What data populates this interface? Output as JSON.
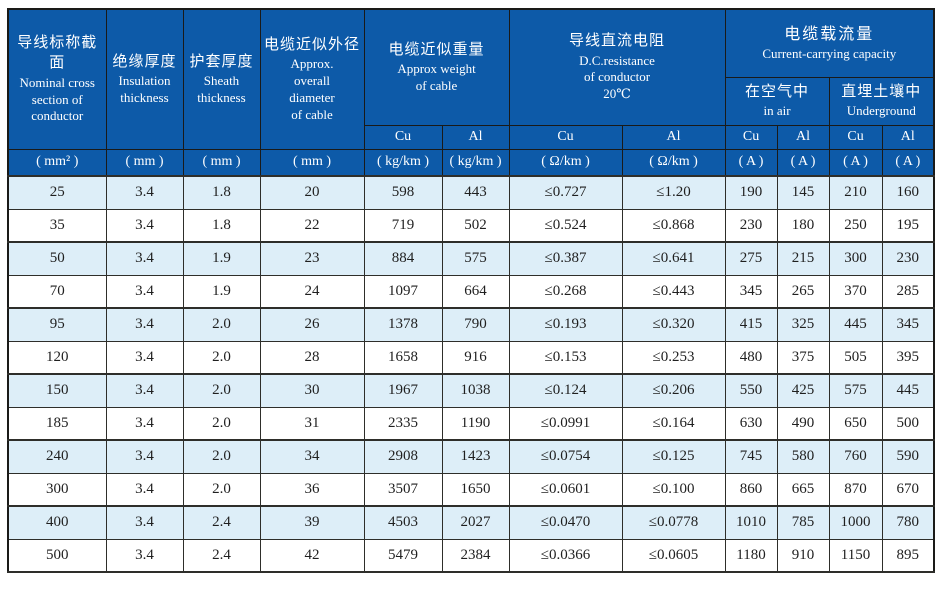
{
  "colors": {
    "header_bg": "#0d5aa8",
    "row_alt_bg": "#ddeef8",
    "row_bg": "#ffffff",
    "border": "#1a1a18",
    "header_text": "#ffffff",
    "body_text": "#1f1f1f"
  },
  "header": {
    "col_conductor": {
      "cn": "导线标称截面",
      "en": "Nominal cross\nsection of\nconductor"
    },
    "col_insulation": {
      "cn": "绝缘厚度",
      "en": "Insulation\nthickness"
    },
    "col_sheath": {
      "cn": "护套厚度",
      "en": "Sheath\nthickness"
    },
    "col_diameter": {
      "cn": "电缆近似外径",
      "en": "Approx.\noverall\ndiameter\nof cable"
    },
    "group_weight": {
      "cn": "电缆近似重量",
      "en": "Approx weight\nof cable"
    },
    "group_resistance": {
      "cn": "导线直流电阻",
      "en": "D.C.resistance\nof conductor\n20℃"
    },
    "group_capacity": {
      "cn": "电缆载流量",
      "en": "Current-carrying capacity"
    },
    "sub_air": {
      "cn": "在空气中",
      "en": "in air"
    },
    "sub_underground": {
      "cn": "直埋土壤中",
      "en": "Underground"
    },
    "subheads": [
      "Cu",
      "Al",
      "Cu",
      "Al",
      "Cu",
      "Al",
      "Cu",
      "Al"
    ],
    "units": [
      "( mm² )",
      "( mm )",
      "( mm )",
      "( mm )",
      "( kg/km )",
      "( kg/km )",
      "( Ω/km )",
      "( Ω/km )",
      "( A )",
      "( A )",
      "( A )",
      "( A )"
    ]
  },
  "rows": [
    [
      "25",
      "3.4",
      "1.8",
      "20",
      "598",
      "443",
      "≤0.727",
      "≤1.20",
      "190",
      "145",
      "210",
      "160"
    ],
    [
      "35",
      "3.4",
      "1.8",
      "22",
      "719",
      "502",
      "≤0.524",
      "≤0.868",
      "230",
      "180",
      "250",
      "195"
    ],
    [
      "50",
      "3.4",
      "1.9",
      "23",
      "884",
      "575",
      "≤0.387",
      "≤0.641",
      "275",
      "215",
      "300",
      "230"
    ],
    [
      "70",
      "3.4",
      "1.9",
      "24",
      "1097",
      "664",
      "≤0.268",
      "≤0.443",
      "345",
      "265",
      "370",
      "285"
    ],
    [
      "95",
      "3.4",
      "2.0",
      "26",
      "1378",
      "790",
      "≤0.193",
      "≤0.320",
      "415",
      "325",
      "445",
      "345"
    ],
    [
      "120",
      "3.4",
      "2.0",
      "28",
      "1658",
      "916",
      "≤0.153",
      "≤0.253",
      "480",
      "375",
      "505",
      "395"
    ],
    [
      "150",
      "3.4",
      "2.0",
      "30",
      "1967",
      "1038",
      "≤0.124",
      "≤0.206",
      "550",
      "425",
      "575",
      "445"
    ],
    [
      "185",
      "3.4",
      "2.0",
      "31",
      "2335",
      "1190",
      "≤0.0991",
      "≤0.164",
      "630",
      "490",
      "650",
      "500"
    ],
    [
      "240",
      "3.4",
      "2.0",
      "34",
      "2908",
      "1423",
      "≤0.0754",
      "≤0.125",
      "745",
      "580",
      "760",
      "590"
    ],
    [
      "300",
      "3.4",
      "2.0",
      "36",
      "3507",
      "1650",
      "≤0.0601",
      "≤0.100",
      "860",
      "665",
      "870",
      "670"
    ],
    [
      "400",
      "3.4",
      "2.4",
      "39",
      "4503",
      "2027",
      "≤0.0470",
      "≤0.0778",
      "1010",
      "785",
      "1000",
      "780"
    ],
    [
      "500",
      "3.4",
      "2.4",
      "42",
      "5479",
      "2384",
      "≤0.0366",
      "≤0.0605",
      "1180",
      "910",
      "1150",
      "895"
    ]
  ]
}
